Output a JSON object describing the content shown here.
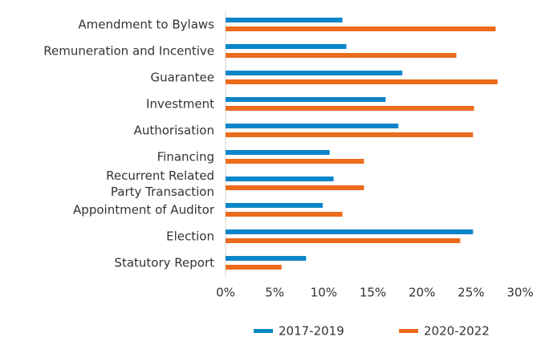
{
  "chart_data": {
    "type": "bar",
    "orientation": "horizontal",
    "categories": [
      "Amendment to Bylaws",
      "Remuneration and Incentive",
      "Guarantee",
      "Investment",
      "Authorisation",
      "Financing",
      "Recurrent Related Party Transaction",
      "Appointment of Auditor",
      "Election",
      "Statutory Report"
    ],
    "series": [
      {
        "name": "2017-2019",
        "color": "#0a86c8",
        "values": [
          11.9,
          12.3,
          18.0,
          16.3,
          17.6,
          10.6,
          11.0,
          9.9,
          25.2,
          8.2
        ]
      },
      {
        "name": "2020-2022",
        "color": "#ec6b1c",
        "values": [
          27.5,
          23.5,
          27.7,
          25.3,
          25.2,
          14.1,
          14.1,
          11.9,
          23.9,
          5.7
        ]
      }
    ],
    "xlim": [
      0,
      30
    ],
    "xticks": [
      {
        "value": 0,
        "label": "0%"
      },
      {
        "value": 5,
        "label": "5%"
      },
      {
        "value": 10,
        "label": "10%"
      },
      {
        "value": 15,
        "label": "15%"
      },
      {
        "value": 20,
        "label": "20%"
      },
      {
        "value": 25,
        "label": "25%"
      },
      {
        "value": 30,
        "label": "30%"
      }
    ],
    "legend": "bottom"
  }
}
